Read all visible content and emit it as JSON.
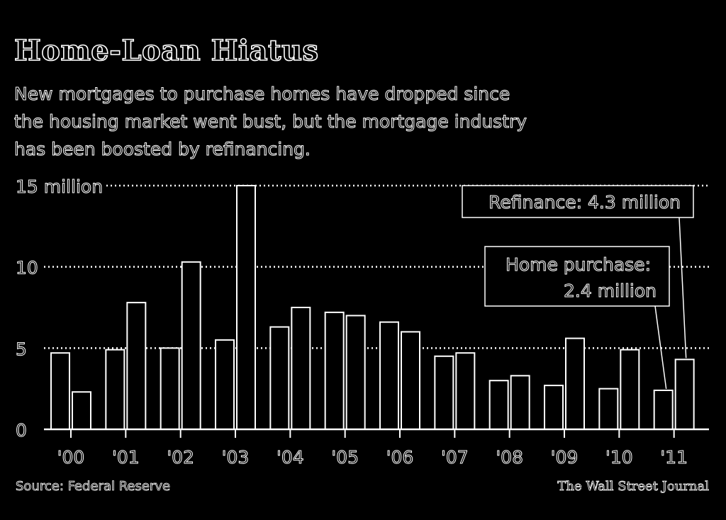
{
  "header": {
    "title": "Home-Loan Hiatus",
    "subtitle": "New mortgages to purchase homes have dropped since the housing market went bust, but the mortgage industry has been boosted by refinancing."
  },
  "footer": {
    "source": "Source: Federal Reserve",
    "credit": "The Wall Street Journal"
  },
  "colors": {
    "background": "#000000",
    "stroke": "#ffffff"
  },
  "chart_data": {
    "type": "bar",
    "title": "Home-Loan Hiatus",
    "xlabel": "",
    "ylabel": "",
    "ylim": [
      0,
      15
    ],
    "y_ticks": [
      {
        "value": 15,
        "label": "15 million"
      },
      {
        "value": 10,
        "label": "10"
      },
      {
        "value": 5,
        "label": "5"
      },
      {
        "value": 0,
        "label": "0"
      }
    ],
    "grid": "dotted horizontal",
    "categories": [
      "'00",
      "'01",
      "'02",
      "'03",
      "'04",
      "'05",
      "'06",
      "'07",
      "'08",
      "'09",
      "'10",
      "'11"
    ],
    "series": [
      {
        "values": [
          4.7,
          4.9,
          5.0,
          5.5,
          6.3,
          7.2,
          6.6,
          4.5,
          3.0,
          2.7,
          2.5,
          2.4
        ]
      },
      {
        "values": [
          2.3,
          7.8,
          10.3,
          15.0,
          7.5,
          7.0,
          6.0,
          4.7,
          3.3,
          5.6,
          4.9,
          4.3
        ]
      }
    ],
    "annotations": {
      "refinance": "Refinance: 4.3 million",
      "purchase_line1": "Home purchase:",
      "purchase_line2": "2.4 million"
    }
  }
}
